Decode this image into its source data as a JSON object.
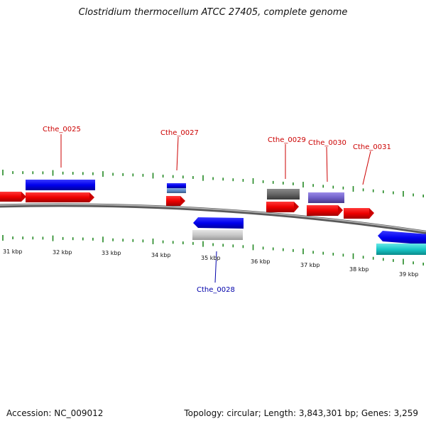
{
  "title": "Clostridium thermocellum ATCC 27405, complete genome",
  "footer": {
    "accession": "Accession: NC_009012",
    "summary": "Topology: circular; Length: 3,843,301 bp; Genes: 3,259"
  },
  "colors": {
    "forward_gene": "#ee0000",
    "reverse_gene": "#0000ee",
    "cyan_gene": "#18c8c8",
    "gray_gene": "#c8c8c8",
    "dark_gray_gene": "#666666",
    "purple_gene": "#7060c8",
    "steelblue_gene": "#5a8ac8",
    "tick": "#228822",
    "backbone": "#888888",
    "label_forward": "#cc0000",
    "label_reverse": "#0000aa"
  },
  "kbp_labels": [
    "31 kbp",
    "32 kbp",
    "33 kbp",
    "34 kbp",
    "35 kbp",
    "36 kbp",
    "37 kbp",
    "38 kbp",
    "39 kbp"
  ],
  "gene_labels": [
    {
      "text": "Cthe_0025",
      "strand": "forward"
    },
    {
      "text": "Cthe_0027",
      "strand": "forward"
    },
    {
      "text": "Cthe_0029",
      "strand": "forward"
    },
    {
      "text": "Cthe_0030",
      "strand": "forward"
    },
    {
      "text": "Cthe_0031",
      "strand": "forward"
    },
    {
      "text": "Cthe_0028",
      "strand": "reverse"
    }
  ]
}
